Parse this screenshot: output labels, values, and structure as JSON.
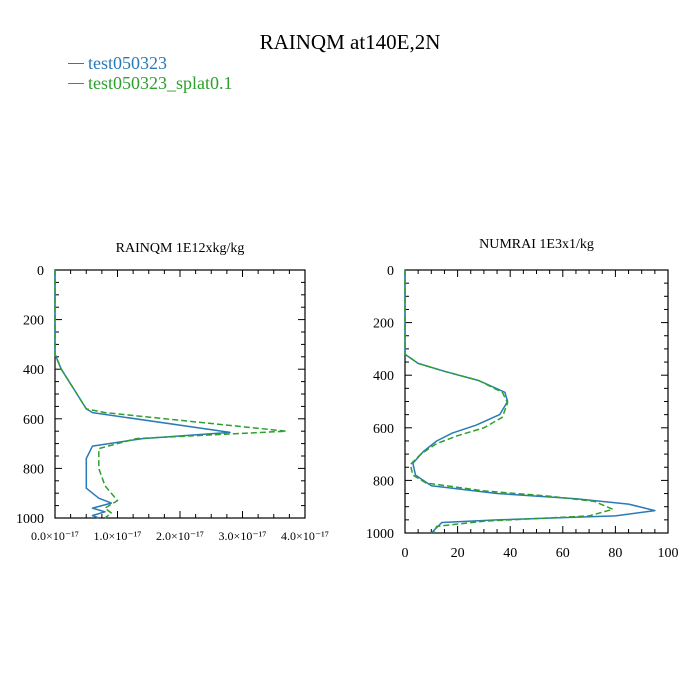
{
  "title": "RAINQM at140E,2N",
  "legend": [
    {
      "name": "test050323",
      "color": "#2a7ab8"
    },
    {
      "name": "test050323_splat0.1",
      "color": "#2ca02c"
    }
  ],
  "chart_data": [
    {
      "type": "line",
      "title": "RAINQM  1E12xkg/kg",
      "xlim": [
        0,
        4e-17
      ],
      "ylim": [
        1000,
        0
      ],
      "x_ticks": [
        "0.0×10⁻¹⁷",
        "1.0×10⁻¹⁷",
        "2.0×10⁻¹⁷",
        "3.0×10⁻¹⁷",
        "4.0×10⁻¹⁷"
      ],
      "y_ticks": [
        "0",
        "200",
        "400",
        "600",
        "800",
        "1000"
      ],
      "series": [
        {
          "name": "test050323",
          "color": "#2a7ab8",
          "dash": "solid",
          "points": [
            [
              0,
              0
            ],
            [
              0,
              200
            ],
            [
              0,
              340
            ],
            [
              1e-18,
              400
            ],
            [
              3e-18,
              480
            ],
            [
              5e-18,
              560
            ],
            [
              6e-18,
              575
            ],
            [
              2.8e-17,
              655
            ],
            [
              1.4e-17,
              680
            ],
            [
              6e-18,
              710
            ],
            [
              5e-18,
              760
            ],
            [
              5e-18,
              820
            ],
            [
              5e-18,
              880
            ],
            [
              7e-18,
              920
            ],
            [
              9e-18,
              940
            ],
            [
              6e-18,
              960
            ],
            [
              8e-18,
              975
            ],
            [
              6e-18,
              990
            ],
            [
              7e-18,
              1000
            ]
          ]
        },
        {
          "name": "test050323_splat0.1",
          "color": "#2ca02c",
          "dash": "dashed",
          "points": [
            [
              0,
              0
            ],
            [
              0,
              200
            ],
            [
              0,
              340
            ],
            [
              1e-18,
              400
            ],
            [
              3e-18,
              480
            ],
            [
              5e-18,
              560
            ],
            [
              8e-18,
              575
            ],
            [
              3.7e-17,
              650
            ],
            [
              1.3e-17,
              680
            ],
            [
              7e-18,
              720
            ],
            [
              7e-18,
              800
            ],
            [
              8e-18,
              870
            ],
            [
              1e-17,
              930
            ],
            [
              8e-18,
              960
            ],
            [
              9e-18,
              980
            ],
            [
              8e-18,
              1000
            ]
          ]
        }
      ]
    },
    {
      "type": "line",
      "title": "NUMRAI  1E3x1/kg",
      "xlim": [
        0,
        100
      ],
      "ylim": [
        1000,
        0
      ],
      "x_ticks": [
        "0",
        "20",
        "40",
        "60",
        "80",
        "100"
      ],
      "y_ticks": [
        "0",
        "200",
        "400",
        "600",
        "800",
        "1000"
      ],
      "series": [
        {
          "name": "test050323",
          "color": "#2a7ab8",
          "dash": "solid",
          "points": [
            [
              0,
              0
            ],
            [
              0,
              200
            ],
            [
              0,
              320
            ],
            [
              5,
              355
            ],
            [
              15,
              385
            ],
            [
              28,
              420
            ],
            [
              38,
              465
            ],
            [
              39,
              500
            ],
            [
              36,
              550
            ],
            [
              27,
              590
            ],
            [
              18,
              620
            ],
            [
              12,
              650
            ],
            [
              7,
              690
            ],
            [
              3,
              735
            ],
            [
              4,
              780
            ],
            [
              10,
              820
            ],
            [
              35,
              850
            ],
            [
              65,
              870
            ],
            [
              85,
              890
            ],
            [
              95,
              915
            ],
            [
              80,
              935
            ],
            [
              35,
              950
            ],
            [
              14,
              960
            ],
            [
              12,
              980
            ],
            [
              10,
              1000
            ]
          ]
        },
        {
          "name": "test050323_splat0.1",
          "color": "#2ca02c",
          "dash": "dashed",
          "points": [
            [
              0,
              0
            ],
            [
              0,
              200
            ],
            [
              0,
              320
            ],
            [
              5,
              355
            ],
            [
              15,
              385
            ],
            [
              28,
              420
            ],
            [
              37,
              465
            ],
            [
              39,
              505
            ],
            [
              37,
              560
            ],
            [
              30,
              600
            ],
            [
              20,
              630
            ],
            [
              12,
              660
            ],
            [
              6,
              700
            ],
            [
              2,
              740
            ],
            [
              3,
              780
            ],
            [
              8,
              810
            ],
            [
              30,
              840
            ],
            [
              55,
              860
            ],
            [
              72,
              880
            ],
            [
              79,
              910
            ],
            [
              70,
              935
            ],
            [
              30,
              955
            ],
            [
              12,
              975
            ],
            [
              11,
              1000
            ]
          ]
        }
      ]
    }
  ]
}
